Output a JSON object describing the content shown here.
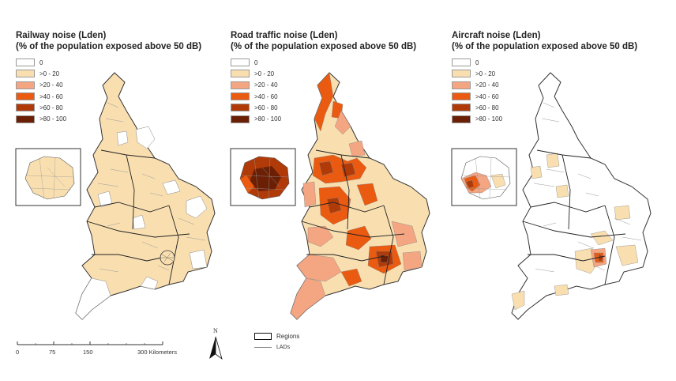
{
  "legend_classes": [
    {
      "label": "0",
      "color": "#ffffff"
    },
    {
      "label": ">0 - 20",
      "color": "#f9dfb0"
    },
    {
      "label": ">20 - 40",
      "color": "#f4a582"
    },
    {
      "label": ">40 - 60",
      "color": "#ea5a10"
    },
    {
      "label": ">60 - 80",
      "color": "#b03a08"
    },
    {
      "label": ">80 - 100",
      "color": "#6b1f05"
    }
  ],
  "panels": [
    {
      "title": "Railway noise (Lden)",
      "subtitle": "(% of the population exposed above 50 dB)"
    },
    {
      "title": "Road traffic noise (Lden)",
      "subtitle": "(% of the population exposed above 50 dB)"
    },
    {
      "title": "Aircraft noise (Lden)",
      "subtitle": "(% of the population exposed above 50 dB)"
    }
  ],
  "scale_bar": {
    "ticks": [
      "0",
      "75",
      "150",
      "300 Kilometers"
    ]
  },
  "north_arrow": {
    "label": "N"
  },
  "map_legend": {
    "regions_label": "Regions",
    "lads_label": "LADs"
  }
}
